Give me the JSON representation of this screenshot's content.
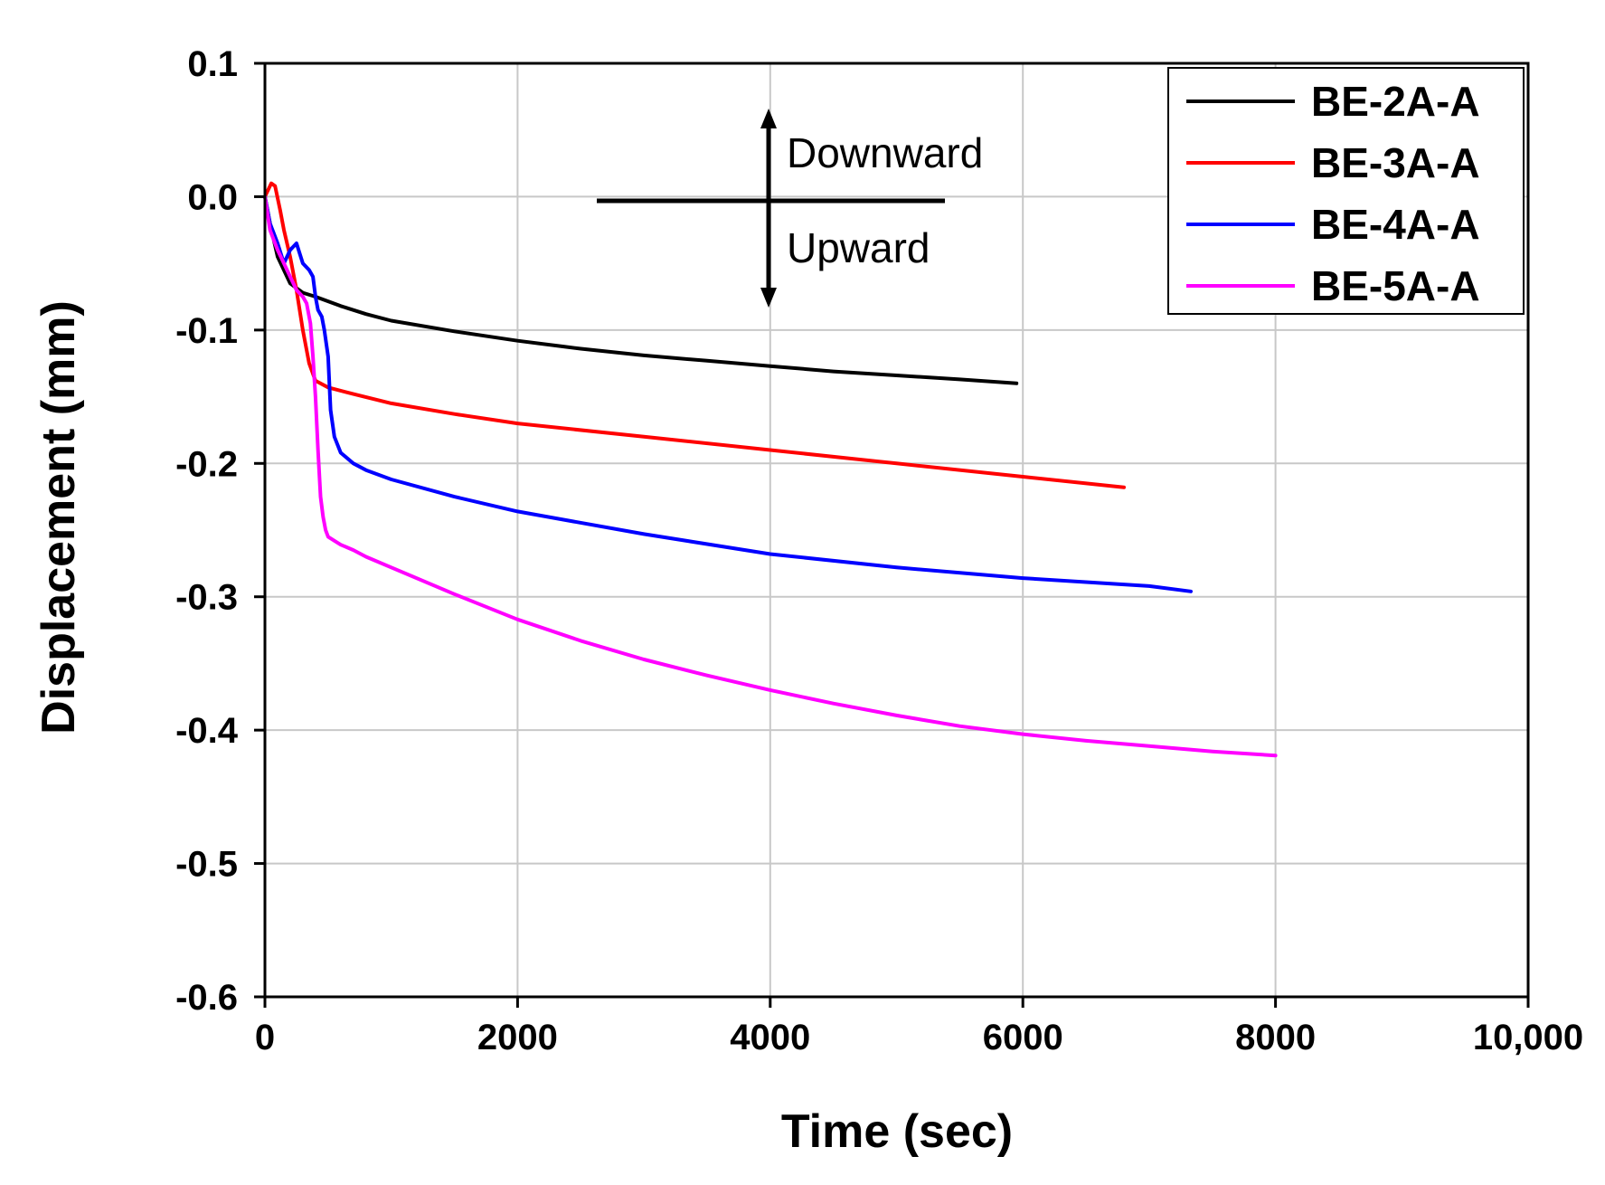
{
  "chart_data": {
    "type": "line",
    "title": "",
    "xlabel": "Time (sec)",
    "ylabel": "Displacement (mm)",
    "xlim": [
      0,
      10000
    ],
    "ylim": [
      -0.6,
      0.1
    ],
    "xticks": [
      0,
      2000,
      4000,
      6000,
      8000,
      10000
    ],
    "xtick_labels": [
      "0",
      "2000",
      "4000",
      "6000",
      "8000",
      "10,000"
    ],
    "yticks": [
      0.1,
      0.0,
      -0.1,
      -0.2,
      -0.3,
      -0.4,
      -0.5,
      -0.6
    ],
    "ytick_labels": [
      "0.1",
      "0.0",
      "-0.1",
      "-0.2",
      "-0.3",
      "-0.4",
      "-0.5",
      "-0.6"
    ],
    "grid": true,
    "legend_position": "top-right",
    "annotations": {
      "up_label": "Downward",
      "down_label": "Upward"
    },
    "series": [
      {
        "name": "BE-2A-A",
        "color": "#000000",
        "x": [
          0,
          40,
          100,
          200,
          300,
          400,
          600,
          800,
          1000,
          1500,
          2000,
          2500,
          3000,
          3500,
          4000,
          4500,
          5000,
          5500,
          5950
        ],
        "y": [
          0.0,
          -0.02,
          -0.045,
          -0.065,
          -0.072,
          -0.075,
          -0.082,
          -0.088,
          -0.093,
          -0.101,
          -0.108,
          -0.114,
          -0.119,
          -0.123,
          -0.127,
          -0.131,
          -0.134,
          -0.137,
          -0.14
        ]
      },
      {
        "name": "BE-3A-A",
        "color": "#ff0000",
        "x": [
          0,
          50,
          80,
          120,
          150,
          200,
          250,
          300,
          350,
          400,
          500,
          700,
          1000,
          1500,
          2000,
          3000,
          4000,
          5000,
          6000,
          6800
        ],
        "y": [
          0.0,
          0.01,
          0.008,
          -0.01,
          -0.025,
          -0.045,
          -0.07,
          -0.1,
          -0.125,
          -0.138,
          -0.143,
          -0.148,
          -0.155,
          -0.163,
          -0.17,
          -0.18,
          -0.19,
          -0.2,
          -0.21,
          -0.218
        ]
      },
      {
        "name": "BE-4A-A",
        "color": "#0000ff",
        "x": [
          0,
          40,
          100,
          150,
          200,
          250,
          300,
          350,
          380,
          400,
          420,
          450,
          470,
          500,
          520,
          550,
          600,
          700,
          800,
          1000,
          1500,
          2000,
          3000,
          4000,
          5000,
          6000,
          7000,
          7330
        ],
        "y": [
          0.0,
          -0.02,
          -0.035,
          -0.05,
          -0.04,
          -0.035,
          -0.05,
          -0.055,
          -0.06,
          -0.075,
          -0.085,
          -0.09,
          -0.1,
          -0.12,
          -0.16,
          -0.18,
          -0.192,
          -0.2,
          -0.205,
          -0.212,
          -0.225,
          -0.236,
          -0.253,
          -0.268,
          -0.278,
          -0.286,
          -0.292,
          -0.296
        ]
      },
      {
        "name": "BE-5A-A",
        "color": "#ff00ff",
        "x": [
          0,
          40,
          100,
          150,
          200,
          250,
          300,
          330,
          360,
          380,
          400,
          420,
          440,
          460,
          480,
          500,
          550,
          600,
          700,
          800,
          1000,
          1500,
          2000,
          2500,
          3000,
          3500,
          4000,
          4500,
          5000,
          5500,
          6000,
          6500,
          7000,
          7500,
          8000
        ],
        "y": [
          0.0,
          -0.025,
          -0.04,
          -0.05,
          -0.06,
          -0.07,
          -0.075,
          -0.08,
          -0.095,
          -0.12,
          -0.15,
          -0.19,
          -0.225,
          -0.24,
          -0.25,
          -0.255,
          -0.258,
          -0.261,
          -0.265,
          -0.27,
          -0.278,
          -0.298,
          -0.317,
          -0.333,
          -0.347,
          -0.359,
          -0.37,
          -0.38,
          -0.389,
          -0.397,
          -0.403,
          -0.408,
          -0.412,
          -0.416,
          -0.419
        ]
      }
    ]
  }
}
